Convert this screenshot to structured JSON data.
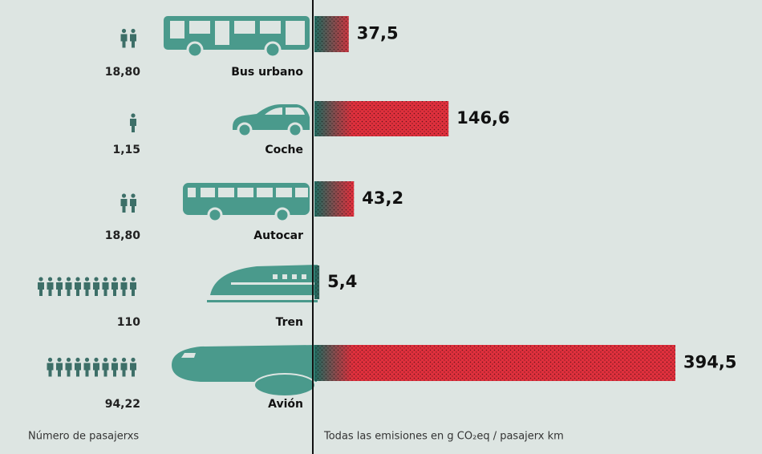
{
  "chart_data": {
    "type": "bar",
    "categories": [
      "Bus urbano",
      "Coche",
      "Autocar",
      "Tren",
      "Avión"
    ],
    "values": [
      37.5,
      146.6,
      43.2,
      5.4,
      394.5
    ],
    "value_labels": [
      "37,5",
      "146,6",
      "43,2",
      "5,4",
      "394,5"
    ],
    "passengers": [
      18.8,
      1.15,
      18.8,
      110,
      94.22
    ],
    "passenger_labels": [
      "18,80",
      "1,15",
      "18,80",
      "110",
      "94,22"
    ],
    "colors": [
      "#1f6b60",
      "#e0303d"
    ],
    "left_label": "Número de pasajerxs",
    "axis_label": "Todas las emisiones en g CO₂eq / pasajerx km"
  }
}
